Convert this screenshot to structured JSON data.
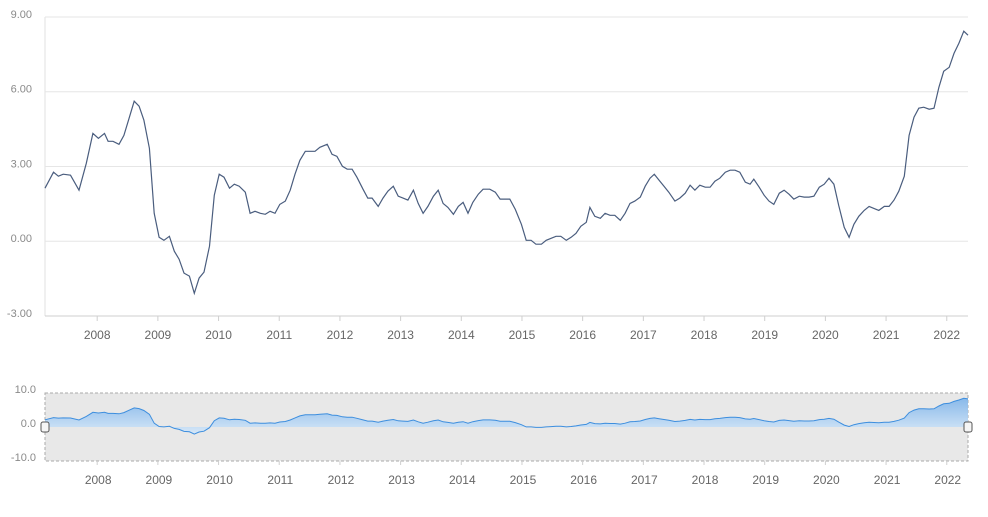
{
  "chart_data": {
    "type": "line",
    "color": "#4a5d7e",
    "xlim": [
      2007.14,
      2022.35
    ],
    "xticks": [
      2008,
      2009,
      2010,
      2011,
      2012,
      2013,
      2014,
      2015,
      2016,
      2017,
      2018,
      2019,
      2020,
      2021,
      2022
    ],
    "ylim": [
      -3,
      9
    ],
    "yticks": [
      {
        "value": -3,
        "label": "-3.00"
      },
      {
        "value": 0,
        "label": "0.00"
      },
      {
        "value": 3,
        "label": "3.00"
      },
      {
        "value": 6,
        "label": "6.00"
      },
      {
        "value": 9,
        "label": "9.00"
      }
    ],
    "grid": true,
    "navigator": {
      "ylim": [
        -10,
        10
      ],
      "yticks": [
        {
          "value": -10,
          "label": "-10.0"
        },
        {
          "value": 0,
          "label": "0.0"
        },
        {
          "value": 10,
          "label": "10.0"
        }
      ],
      "color": "#3d8ede",
      "fill": "#a9cdf0"
    },
    "x": [
      2007.14,
      2007.28,
      2007.36,
      2007.44,
      2007.56,
      2007.7,
      2007.82,
      2007.93,
      2008.02,
      2008.12,
      2008.18,
      2008.26,
      2008.36,
      2008.44,
      2008.53,
      2008.61,
      2008.69,
      2008.77,
      2008.86,
      2008.94,
      2009.02,
      2009.1,
      2009.19,
      2009.27,
      2009.35,
      2009.43,
      2009.52,
      2009.6,
      2009.68,
      2009.76,
      2009.85,
      2009.93,
      2010.01,
      2010.09,
      2010.18,
      2010.26,
      2010.34,
      2010.44,
      2010.52,
      2010.6,
      2010.69,
      2010.77,
      2010.85,
      2010.93,
      2011.01,
      2011.1,
      2011.18,
      2011.26,
      2011.34,
      2011.43,
      2011.59,
      2011.67,
      2011.79,
      2011.87,
      2011.95,
      2012.04,
      2012.12,
      2012.2,
      2012.28,
      2012.38,
      2012.46,
      2012.53,
      2012.63,
      2012.71,
      2012.79,
      2012.88,
      2012.96,
      2013.04,
      2013.12,
      2013.21,
      2013.29,
      2013.37,
      2013.45,
      2013.54,
      2013.62,
      2013.7,
      2013.78,
      2013.87,
      2013.95,
      2014.03,
      2014.11,
      2014.19,
      2014.28,
      2014.36,
      2014.47,
      2014.56,
      2014.64,
      2014.72,
      2014.8,
      2014.89,
      2014.99,
      2015.07,
      2015.15,
      2015.23,
      2015.32,
      2015.4,
      2015.48,
      2015.56,
      2015.64,
      2015.73,
      2015.81,
      2015.89,
      2015.97,
      2016.06,
      2016.12,
      2016.2,
      2016.29,
      2016.37,
      2016.45,
      2016.53,
      2016.62,
      2016.7,
      2016.78,
      2016.86,
      2016.95,
      2017.03,
      2017.11,
      2017.18,
      2017.26,
      2017.34,
      2017.42,
      2017.52,
      2017.6,
      2017.69,
      2017.77,
      2017.85,
      2017.93,
      2018.02,
      2018.1,
      2018.18,
      2018.26,
      2018.35,
      2018.43,
      2018.51,
      2018.59,
      2018.68,
      2018.76,
      2018.82,
      2018.91,
      2018.99,
      2019.07,
      2019.15,
      2019.24,
      2019.32,
      2019.4,
      2019.48,
      2019.57,
      2019.65,
      2019.73,
      2019.81,
      2019.9,
      2019.98,
      2020.06,
      2020.14,
      2020.22,
      2020.31,
      2020.39,
      2020.47,
      2020.55,
      2020.64,
      2020.72,
      2020.8,
      2020.88,
      2020.97,
      2021.05,
      2021.13,
      2021.21,
      2021.3,
      2021.38,
      2021.46,
      2021.54,
      2021.62,
      2021.71,
      2021.79,
      2021.87,
      2021.95,
      2022.04,
      2022.12,
      2022.2,
      2022.28,
      2022.35
    ],
    "values": [
      2.13,
      2.77,
      2.61,
      2.69,
      2.65,
      2.05,
      3.13,
      4.33,
      4.13,
      4.33,
      4.01,
      4.01,
      3.89,
      4.25,
      4.98,
      5.62,
      5.42,
      4.86,
      3.73,
      1.12,
      0.16,
      0.04,
      0.2,
      -0.4,
      -0.72,
      -1.28,
      -1.4,
      -2.09,
      -1.48,
      -1.24,
      -0.2,
      1.85,
      2.69,
      2.57,
      2.13,
      2.29,
      2.21,
      1.97,
      1.12,
      1.2,
      1.12,
      1.08,
      1.2,
      1.12,
      1.48,
      1.61,
      2.05,
      2.69,
      3.25,
      3.61,
      3.61,
      3.77,
      3.89,
      3.49,
      3.41,
      3.01,
      2.89,
      2.89,
      2.57,
      2.09,
      1.73,
      1.73,
      1.4,
      1.73,
      2.01,
      2.21,
      1.81,
      1.73,
      1.65,
      2.05,
      1.52,
      1.12,
      1.4,
      1.81,
      2.05,
      1.52,
      1.36,
      1.08,
      1.4,
      1.56,
      1.12,
      1.56,
      1.89,
      2.09,
      2.09,
      1.97,
      1.69,
      1.69,
      1.69,
      1.28,
      0.68,
      0.04,
      0.04,
      -0.12,
      -0.12,
      0.04,
      0.12,
      0.2,
      0.2,
      0.04,
      0.16,
      0.32,
      0.6,
      0.76,
      1.36,
      1.0,
      0.92,
      1.12,
      1.04,
      1.04,
      0.84,
      1.12,
      1.52,
      1.61,
      1.77,
      2.21,
      2.53,
      2.69,
      2.45,
      2.21,
      1.97,
      1.61,
      1.73,
      1.93,
      2.25,
      2.05,
      2.25,
      2.17,
      2.17,
      2.41,
      2.53,
      2.77,
      2.85,
      2.85,
      2.77,
      2.37,
      2.29,
      2.49,
      2.17,
      1.85,
      1.61,
      1.48,
      1.93,
      2.05,
      1.89,
      1.69,
      1.81,
      1.77,
      1.77,
      1.81,
      2.17,
      2.29,
      2.53,
      2.29,
      1.44,
      0.56,
      0.16,
      0.68,
      1.0,
      1.24,
      1.4,
      1.32,
      1.24,
      1.4,
      1.4,
      1.65,
      2.01,
      2.61,
      4.25,
      4.98,
      5.34,
      5.38,
      5.3,
      5.34,
      6.18,
      6.82,
      6.98,
      7.54,
      7.95,
      8.43,
      8.27
    ]
  }
}
